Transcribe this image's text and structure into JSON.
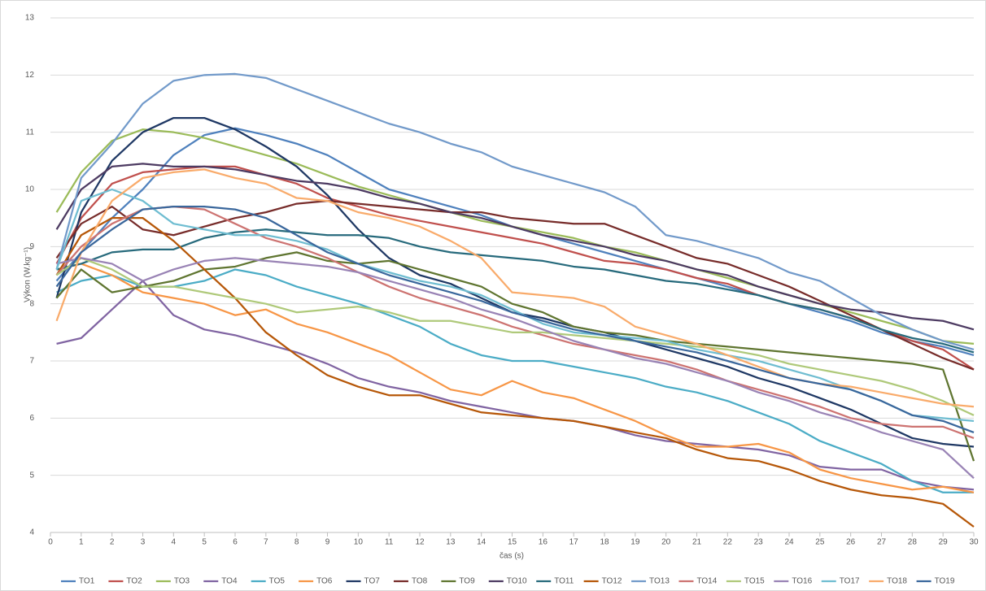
{
  "chart_data": {
    "type": "line",
    "x_label": "čas (s)",
    "y_label": "Výkon (W.kg⁻¹)",
    "x": [
      0.2,
      1,
      2,
      3,
      4,
      5,
      6,
      7,
      8,
      9,
      10,
      11,
      12,
      13,
      14,
      15,
      16,
      17,
      18,
      19,
      20,
      21,
      22,
      23,
      24,
      25,
      26,
      27,
      28,
      29,
      30
    ],
    "xlim": [
      0,
      30
    ],
    "xticks": [
      0,
      1,
      2,
      3,
      4,
      5,
      6,
      7,
      8,
      9,
      10,
      11,
      12,
      13,
      14,
      15,
      16,
      17,
      18,
      19,
      20,
      21,
      22,
      23,
      24,
      25,
      26,
      27,
      28,
      29,
      30
    ],
    "ylim": [
      4,
      13
    ],
    "yticks": [
      4,
      5,
      6,
      7,
      8,
      9,
      10,
      11,
      12,
      13
    ],
    "grid": true,
    "legend": "bottom",
    "series": [
      {
        "name": "TO1",
        "color": "#4f81bd",
        "values": [
          8.4,
          8.9,
          9.5,
          10.0,
          10.6,
          10.95,
          11.07,
          10.95,
          10.8,
          10.6,
          10.3,
          10.0,
          9.85,
          9.7,
          9.55,
          9.35,
          9.2,
          9.05,
          8.9,
          8.75,
          8.6,
          8.45,
          8.3,
          8.15,
          8.0,
          7.85,
          7.7,
          7.5,
          7.35,
          7.25,
          7.1
        ]
      },
      {
        "name": "TO2",
        "color": "#c0504d",
        "values": [
          8.7,
          9.5,
          10.1,
          10.3,
          10.35,
          10.4,
          10.4,
          10.25,
          10.1,
          9.85,
          9.7,
          9.55,
          9.45,
          9.35,
          9.25,
          9.15,
          9.05,
          8.9,
          8.75,
          8.7,
          8.6,
          8.45,
          8.35,
          8.15,
          8.0,
          7.9,
          7.75,
          7.55,
          7.35,
          7.2,
          6.85
        ]
      },
      {
        "name": "TO3",
        "color": "#9bbb59",
        "values": [
          9.6,
          10.3,
          10.85,
          11.05,
          11.0,
          10.9,
          10.75,
          10.6,
          10.45,
          10.25,
          10.05,
          9.9,
          9.75,
          9.6,
          9.45,
          9.35,
          9.25,
          9.15,
          9.0,
          8.9,
          8.75,
          8.6,
          8.45,
          8.3,
          8.15,
          8.0,
          7.85,
          7.7,
          7.55,
          7.35,
          7.3
        ]
      },
      {
        "name": "TO4",
        "color": "#8064a2",
        "values": [
          7.3,
          7.4,
          7.9,
          8.4,
          7.8,
          7.55,
          7.45,
          7.3,
          7.15,
          6.95,
          6.7,
          6.55,
          6.45,
          6.3,
          6.2,
          6.1,
          6.0,
          5.95,
          5.85,
          5.7,
          5.6,
          5.55,
          5.5,
          5.45,
          5.35,
          5.15,
          5.1,
          5.1,
          4.9,
          4.8,
          4.75
        ]
      },
      {
        "name": "TO5",
        "color": "#4bacc6",
        "values": [
          8.2,
          8.4,
          8.5,
          8.3,
          8.3,
          8.4,
          8.6,
          8.5,
          8.3,
          8.15,
          8.0,
          7.8,
          7.6,
          7.3,
          7.1,
          7.0,
          7.0,
          6.9,
          6.8,
          6.7,
          6.55,
          6.45,
          6.3,
          6.1,
          5.9,
          5.6,
          5.4,
          5.2,
          4.9,
          4.7,
          4.7
        ]
      },
      {
        "name": "TO6",
        "color": "#f79646",
        "values": [
          8.6,
          8.7,
          8.5,
          8.2,
          8.1,
          8.0,
          7.8,
          7.9,
          7.65,
          7.5,
          7.3,
          7.1,
          6.8,
          6.5,
          6.4,
          6.65,
          6.45,
          6.35,
          6.15,
          5.95,
          5.7,
          5.5,
          5.5,
          5.55,
          5.4,
          5.1,
          4.95,
          4.85,
          4.75,
          4.8,
          4.7
        ]
      },
      {
        "name": "TO7",
        "color": "#1f3864",
        "values": [
          8.1,
          9.6,
          10.5,
          11.0,
          11.25,
          11.25,
          11.05,
          10.75,
          10.4,
          9.9,
          9.3,
          8.8,
          8.5,
          8.35,
          8.1,
          7.85,
          7.75,
          7.6,
          7.5,
          7.35,
          7.2,
          7.05,
          6.9,
          6.7,
          6.55,
          6.35,
          6.15,
          5.9,
          5.65,
          5.55,
          5.5
        ]
      },
      {
        "name": "TO8",
        "color": "#772c2a",
        "values": [
          8.8,
          9.4,
          9.7,
          9.3,
          9.2,
          9.35,
          9.5,
          9.6,
          9.75,
          9.8,
          9.75,
          9.7,
          9.65,
          9.6,
          9.6,
          9.5,
          9.45,
          9.4,
          9.4,
          9.2,
          9.0,
          8.8,
          8.7,
          8.5,
          8.3,
          8.05,
          7.8,
          7.55,
          7.3,
          7.05,
          6.85
        ]
      },
      {
        "name": "TO9",
        "color": "#5f7530",
        "values": [
          8.1,
          8.6,
          8.2,
          8.3,
          8.4,
          8.6,
          8.65,
          8.8,
          8.9,
          8.75,
          8.7,
          8.75,
          8.6,
          8.45,
          8.3,
          8.0,
          7.85,
          7.6,
          7.5,
          7.45,
          7.35,
          7.3,
          7.25,
          7.2,
          7.15,
          7.1,
          7.05,
          7.0,
          6.95,
          6.85,
          5.25
        ]
      },
      {
        "name": "TO10",
        "color": "#4d3b62",
        "values": [
          9.3,
          10.0,
          10.4,
          10.45,
          10.4,
          10.4,
          10.35,
          10.25,
          10.15,
          10.1,
          10.0,
          9.85,
          9.75,
          9.6,
          9.5,
          9.35,
          9.2,
          9.1,
          9.0,
          8.85,
          8.75,
          8.6,
          8.5,
          8.3,
          8.15,
          8.0,
          7.9,
          7.85,
          7.75,
          7.7,
          7.55
        ]
      },
      {
        "name": "TO11",
        "color": "#276a7c",
        "values": [
          8.6,
          8.7,
          8.9,
          8.95,
          8.95,
          9.15,
          9.25,
          9.3,
          9.25,
          9.2,
          9.2,
          9.15,
          9.0,
          8.9,
          8.85,
          8.8,
          8.75,
          8.65,
          8.6,
          8.5,
          8.4,
          8.35,
          8.25,
          8.15,
          8.0,
          7.9,
          7.75,
          7.55,
          7.4,
          7.3,
          7.15
        ]
      },
      {
        "name": "TO12",
        "color": "#b65708",
        "values": [
          8.5,
          9.2,
          9.5,
          9.5,
          9.1,
          8.6,
          8.1,
          7.5,
          7.1,
          6.75,
          6.55,
          6.4,
          6.4,
          6.25,
          6.1,
          6.05,
          6.0,
          5.95,
          5.85,
          5.75,
          5.65,
          5.45,
          5.3,
          5.25,
          5.1,
          4.9,
          4.75,
          4.65,
          4.6,
          4.5,
          4.1
        ]
      },
      {
        "name": "TO13",
        "color": "#729aca",
        "values": [
          8.6,
          10.2,
          10.8,
          11.5,
          11.9,
          12.0,
          12.02,
          11.95,
          11.75,
          11.55,
          11.35,
          11.15,
          11.0,
          10.8,
          10.65,
          10.4,
          10.25,
          10.1,
          9.95,
          9.7,
          9.2,
          9.1,
          8.95,
          8.8,
          8.55,
          8.4,
          8.1,
          7.8,
          7.55,
          7.35,
          7.2
        ]
      },
      {
        "name": "TO14",
        "color": "#cd7371",
        "values": [
          8.5,
          9.0,
          9.4,
          9.65,
          9.7,
          9.65,
          9.4,
          9.15,
          9.0,
          8.8,
          8.55,
          8.3,
          8.1,
          7.95,
          7.8,
          7.6,
          7.45,
          7.3,
          7.2,
          7.1,
          7.0,
          6.85,
          6.65,
          6.5,
          6.35,
          6.2,
          6.0,
          5.9,
          5.85,
          5.85,
          5.65
        ]
      },
      {
        "name": "TO15",
        "color": "#afc97a",
        "values": [
          8.5,
          8.8,
          8.6,
          8.3,
          8.3,
          8.2,
          8.1,
          8.0,
          7.85,
          7.9,
          7.95,
          7.85,
          7.7,
          7.7,
          7.6,
          7.5,
          7.5,
          7.45,
          7.4,
          7.35,
          7.3,
          7.25,
          7.2,
          7.1,
          6.95,
          6.85,
          6.75,
          6.65,
          6.5,
          6.3,
          6.05
        ]
      },
      {
        "name": "TO16",
        "color": "#9983b5",
        "values": [
          8.7,
          8.8,
          8.7,
          8.4,
          8.6,
          8.75,
          8.8,
          8.75,
          8.7,
          8.65,
          8.55,
          8.4,
          8.25,
          8.1,
          7.9,
          7.75,
          7.55,
          7.35,
          7.2,
          7.05,
          6.95,
          6.8,
          6.65,
          6.45,
          6.3,
          6.1,
          5.95,
          5.75,
          5.6,
          5.45,
          4.95
        ]
      },
      {
        "name": "TO17",
        "color": "#6fbdd1",
        "values": [
          8.6,
          9.8,
          10.0,
          9.8,
          9.4,
          9.3,
          9.2,
          9.2,
          9.1,
          8.95,
          8.7,
          8.55,
          8.4,
          8.3,
          8.15,
          7.9,
          7.65,
          7.5,
          7.45,
          7.4,
          7.35,
          7.2,
          7.1,
          7.0,
          6.85,
          6.7,
          6.5,
          6.3,
          6.05,
          6.0,
          5.95
        ]
      },
      {
        "name": "TO18",
        "color": "#f9ab6b",
        "values": [
          7.7,
          8.9,
          9.8,
          10.2,
          10.3,
          10.35,
          10.2,
          10.1,
          9.85,
          9.8,
          9.6,
          9.5,
          9.35,
          9.1,
          8.8,
          8.2,
          8.15,
          8.1,
          7.95,
          7.6,
          7.45,
          7.3,
          7.1,
          6.9,
          6.7,
          6.6,
          6.55,
          6.45,
          6.35,
          6.25,
          6.2
        ]
      },
      {
        "name": "TO19",
        "color": "#3a679c",
        "values": [
          8.3,
          8.9,
          9.3,
          9.65,
          9.7,
          9.7,
          9.65,
          9.5,
          9.2,
          8.9,
          8.7,
          8.5,
          8.35,
          8.2,
          8.05,
          7.85,
          7.7,
          7.55,
          7.45,
          7.35,
          7.25,
          7.15,
          7.0,
          6.85,
          6.7,
          6.6,
          6.5,
          6.3,
          6.05,
          5.95,
          5.75
        ]
      }
    ]
  }
}
